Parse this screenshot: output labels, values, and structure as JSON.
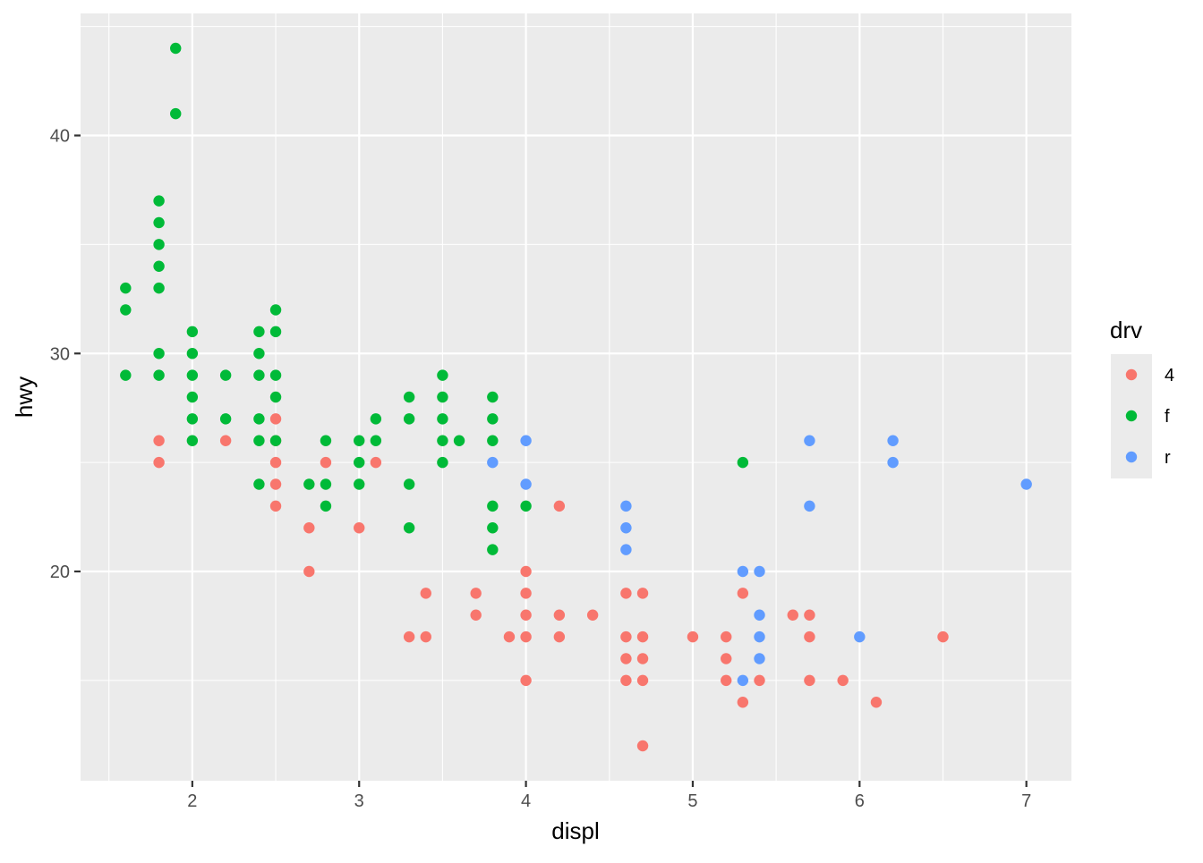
{
  "chart_data": {
    "type": "scatter",
    "xlabel": "displ",
    "ylabel": "hwy",
    "xlim": [
      1.33,
      7.27
    ],
    "ylim": [
      10.4,
      45.6
    ],
    "x_ticks": [
      2,
      3,
      4,
      5,
      6,
      7
    ],
    "x_tick_labels": [
      "2",
      "3",
      "4",
      "5",
      "6",
      "7"
    ],
    "x_minor_ticks": [
      1.5,
      2.5,
      3.5,
      4.5,
      5.5,
      6.5
    ],
    "y_ticks": [
      20,
      30,
      40
    ],
    "y_tick_labels": [
      "20",
      "30",
      "40"
    ],
    "y_minor_ticks": [
      15,
      25,
      35,
      45
    ],
    "grid": true,
    "panel_background": "#ebebeb",
    "legend": {
      "title": "drv",
      "placement": "right",
      "entries": [
        {
          "key": "4",
          "label": "4",
          "color": "#f8766d"
        },
        {
          "key": "f",
          "label": "f",
          "color": "#00ba38"
        },
        {
          "key": "r",
          "label": "r",
          "color": "#619cff"
        }
      ]
    },
    "series": [
      {
        "key": "4",
        "color": "#f8766d",
        "points": [
          [
            1.8,
            26
          ],
          [
            1.8,
            25
          ],
          [
            2.2,
            26
          ],
          [
            2.5,
            27
          ],
          [
            2.5,
            26
          ],
          [
            2.5,
            25
          ],
          [
            2.5,
            24
          ],
          [
            2.5,
            23
          ],
          [
            2.7,
            22
          ],
          [
            2.7,
            20
          ],
          [
            2.8,
            25
          ],
          [
            3.0,
            22
          ],
          [
            3.1,
            25
          ],
          [
            3.3,
            17
          ],
          [
            3.4,
            19
          ],
          [
            3.4,
            17
          ],
          [
            3.7,
            19
          ],
          [
            3.7,
            18
          ],
          [
            3.9,
            17
          ],
          [
            4.0,
            20
          ],
          [
            4.0,
            19
          ],
          [
            4.0,
            18
          ],
          [
            4.0,
            17
          ],
          [
            4.0,
            15
          ],
          [
            4.2,
            23
          ],
          [
            4.2,
            18
          ],
          [
            4.2,
            17
          ],
          [
            4.4,
            18
          ],
          [
            4.6,
            19
          ],
          [
            4.6,
            17
          ],
          [
            4.6,
            16
          ],
          [
            4.6,
            15
          ],
          [
            4.7,
            19
          ],
          [
            4.7,
            17
          ],
          [
            4.7,
            16
          ],
          [
            4.7,
            15
          ],
          [
            4.7,
            12
          ],
          [
            5.0,
            17
          ],
          [
            5.2,
            17
          ],
          [
            5.2,
            16
          ],
          [
            5.2,
            15
          ],
          [
            5.3,
            19
          ],
          [
            5.3,
            14
          ],
          [
            5.4,
            15
          ],
          [
            5.6,
            18
          ],
          [
            5.7,
            18
          ],
          [
            5.7,
            17
          ],
          [
            5.7,
            15
          ],
          [
            5.9,
            15
          ],
          [
            6.1,
            14
          ],
          [
            6.5,
            17
          ]
        ]
      },
      {
        "key": "f",
        "color": "#00ba38",
        "points": [
          [
            1.6,
            33
          ],
          [
            1.6,
            32
          ],
          [
            1.6,
            29
          ],
          [
            1.8,
            37
          ],
          [
            1.8,
            36
          ],
          [
            1.8,
            35
          ],
          [
            1.8,
            34
          ],
          [
            1.8,
            33
          ],
          [
            1.8,
            30
          ],
          [
            1.8,
            29
          ],
          [
            1.9,
            44
          ],
          [
            1.9,
            41
          ],
          [
            2.0,
            31
          ],
          [
            2.0,
            30
          ],
          [
            2.0,
            29
          ],
          [
            2.0,
            28
          ],
          [
            2.0,
            27
          ],
          [
            2.0,
            26
          ],
          [
            2.2,
            29
          ],
          [
            2.2,
            27
          ],
          [
            2.4,
            31
          ],
          [
            2.4,
            30
          ],
          [
            2.4,
            29
          ],
          [
            2.4,
            27
          ],
          [
            2.4,
            26
          ],
          [
            2.4,
            24
          ],
          [
            2.5,
            32
          ],
          [
            2.5,
            31
          ],
          [
            2.5,
            29
          ],
          [
            2.5,
            28
          ],
          [
            2.5,
            26
          ],
          [
            2.7,
            24
          ],
          [
            2.8,
            26
          ],
          [
            2.8,
            24
          ],
          [
            2.8,
            23
          ],
          [
            3.0,
            26
          ],
          [
            3.0,
            25
          ],
          [
            3.0,
            24
          ],
          [
            3.1,
            27
          ],
          [
            3.1,
            26
          ],
          [
            3.3,
            28
          ],
          [
            3.3,
            27
          ],
          [
            3.3,
            24
          ],
          [
            3.3,
            22
          ],
          [
            3.5,
            29
          ],
          [
            3.5,
            28
          ],
          [
            3.5,
            27
          ],
          [
            3.5,
            26
          ],
          [
            3.5,
            25
          ],
          [
            3.6,
            26
          ],
          [
            3.8,
            28
          ],
          [
            3.8,
            27
          ],
          [
            3.8,
            26
          ],
          [
            3.8,
            23
          ],
          [
            3.8,
            22
          ],
          [
            3.8,
            21
          ],
          [
            4.0,
            23
          ],
          [
            5.3,
            25
          ]
        ]
      },
      {
        "key": "r",
        "color": "#619cff",
        "points": [
          [
            3.8,
            25
          ],
          [
            4.0,
            26
          ],
          [
            4.0,
            24
          ],
          [
            4.6,
            23
          ],
          [
            4.6,
            22
          ],
          [
            4.6,
            21
          ],
          [
            5.3,
            20
          ],
          [
            5.3,
            15
          ],
          [
            5.4,
            20
          ],
          [
            5.4,
            18
          ],
          [
            5.4,
            17
          ],
          [
            5.4,
            16
          ],
          [
            5.7,
            26
          ],
          [
            5.7,
            23
          ],
          [
            6.0,
            17
          ],
          [
            6.2,
            26
          ],
          [
            6.2,
            25
          ],
          [
            7.0,
            24
          ]
        ]
      }
    ]
  }
}
